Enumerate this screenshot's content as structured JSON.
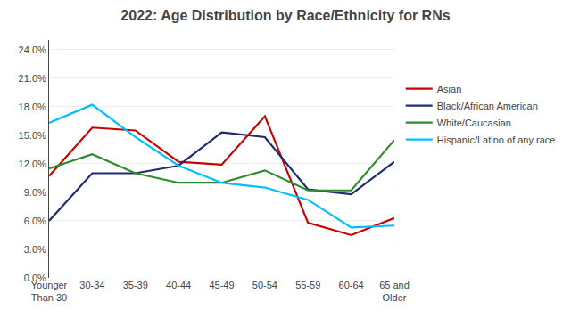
{
  "chart_data": {
    "type": "line",
    "title": "2022: Age Distribution by Race/Ethnicity for RNs",
    "categories": [
      "Younger\nThan 30",
      "30-34",
      "35-39",
      "40-44",
      "45-49",
      "50-54",
      "55-59",
      "60-64",
      "65 and\nOlder"
    ],
    "series": [
      {
        "name": "Asian",
        "color": "#CC0000",
        "values": [
          0.107,
          0.158,
          0.155,
          0.122,
          0.119,
          0.17,
          0.058,
          0.045,
          0.063
        ]
      },
      {
        "name": "Black/African American",
        "color": "#1F2D6E",
        "values": [
          0.06,
          0.11,
          0.11,
          0.118,
          0.153,
          0.148,
          0.093,
          0.088,
          0.122
        ]
      },
      {
        "name": "White/Caucasian",
        "color": "#2E8B2E",
        "values": [
          0.115,
          0.13,
          0.11,
          0.1,
          0.1,
          0.113,
          0.092,
          0.092,
          0.145
        ]
      },
      {
        "name": "Hispanic/Latino of any race",
        "color": "#00BFFF",
        "values": [
          0.163,
          0.182,
          0.148,
          0.118,
          0.1,
          0.095,
          0.082,
          0.053,
          0.055
        ]
      }
    ],
    "ylim": [
      0.0,
      0.25
    ],
    "yticks": [
      {
        "value": 0.0,
        "label": "0.0%"
      },
      {
        "value": 0.03,
        "label": "3.0%"
      },
      {
        "value": 0.06,
        "label": "6.0%"
      },
      {
        "value": 0.09,
        "label": "9.0%"
      },
      {
        "value": 0.12,
        "label": "12.0%"
      },
      {
        "value": 0.15,
        "label": "15.0%"
      },
      {
        "value": 0.18,
        "label": "18.0%"
      },
      {
        "value": 0.21,
        "label": "21.0%"
      },
      {
        "value": 0.24,
        "label": "24.0%"
      }
    ],
    "grid": true,
    "legend": "right"
  }
}
